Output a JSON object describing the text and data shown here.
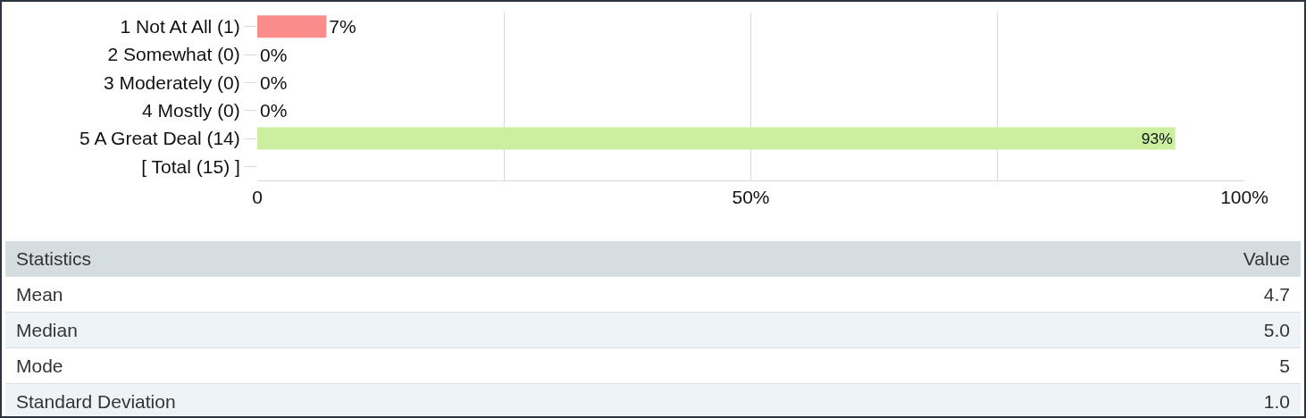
{
  "chart_data": {
    "type": "bar",
    "orientation": "horizontal",
    "categories": [
      "1 Not At All (1)",
      "2 Somewhat (0)",
      "3 Moderately (0)",
      "4 Mostly (0)",
      "5 A Great Deal (14)",
      "[ Total (15) ]"
    ],
    "values": [
      7,
      0,
      0,
      0,
      93,
      null
    ],
    "colors": [
      "#fb8c8c",
      "#ccee9f",
      "#ccee9f",
      "#ccee9f",
      "#ccee9f",
      "#ccee9f"
    ],
    "value_labels": [
      "7%",
      "0%",
      "0%",
      "0%",
      "93%",
      null
    ],
    "xlim": [
      0,
      100
    ],
    "xticks": [
      {
        "value": 0,
        "label": "0"
      },
      {
        "value": 25,
        "label": null
      },
      {
        "value": 50,
        "label": "50%"
      },
      {
        "value": 75,
        "label": null
      },
      {
        "value": 100,
        "label": "100%"
      }
    ],
    "grid": "x",
    "annotations": [
      "Statistics",
      "Value",
      "Mean",
      "4.7",
      "Median",
      "5.0",
      "Mode",
      "5",
      "Standard Deviation",
      "1.0"
    ]
  }
}
